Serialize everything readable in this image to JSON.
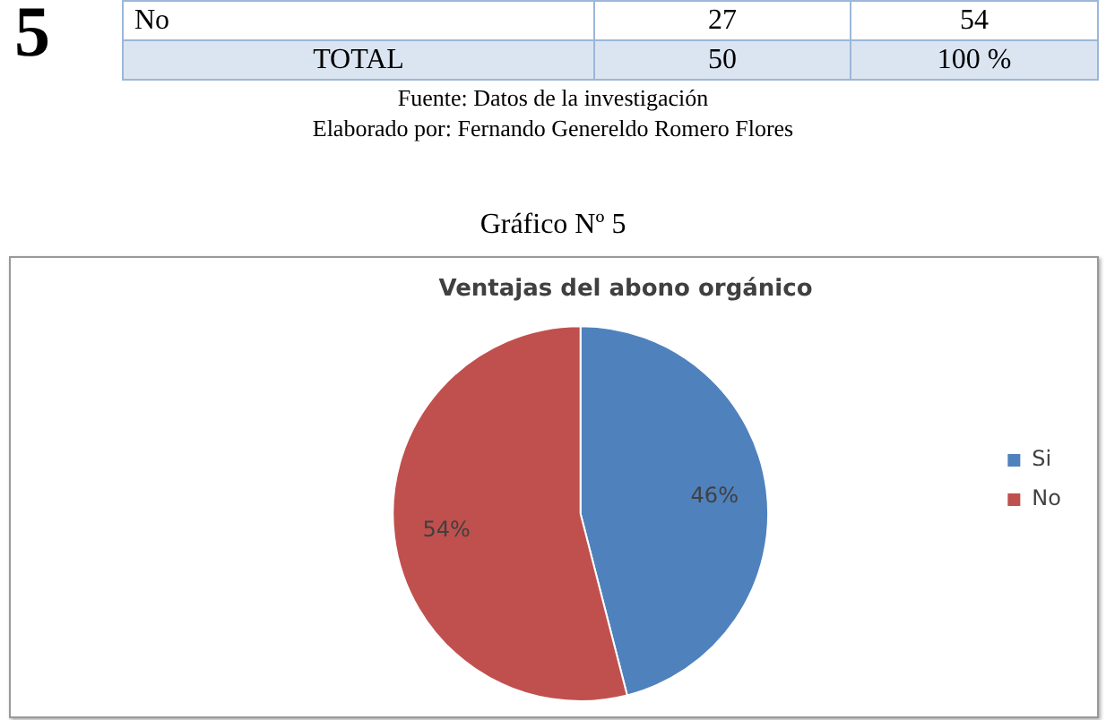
{
  "chart_data": {
    "type": "pie",
    "title": "Ventajas del abono orgánico",
    "categories": [
      "Si",
      "No"
    ],
    "values": [
      46,
      54
    ],
    "colors": [
      "#4f81bd",
      "#c0504d"
    ],
    "value_labels": [
      "46%",
      "54%"
    ],
    "legend": "right",
    "annotations": [
      "5",
      "No",
      "27",
      "54",
      "TOTAL",
      "50",
      "100 %",
      "Fuente: Datos de la investigación",
      "Elaborado por: Fernando Genereldo Romero Flores",
      "Gráfico Nº 5"
    ]
  }
}
